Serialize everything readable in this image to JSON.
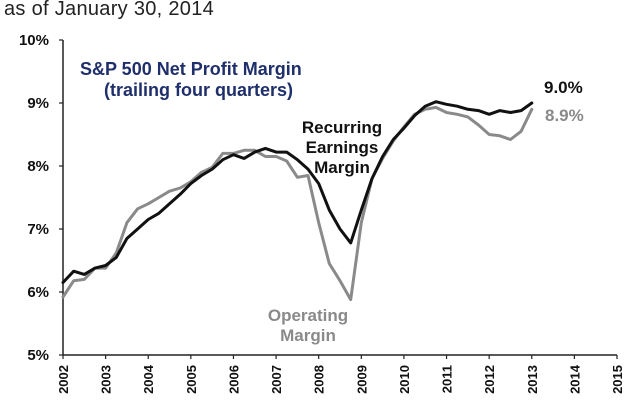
{
  "header": {
    "subtitle": "as of January 30, 2014"
  },
  "chart_data": {
    "type": "line",
    "title": "S&P 500 Net Profit  Margin",
    "subtitle": "(trailing four quarters)",
    "xlabel": "",
    "ylabel": "",
    "xlim": [
      2002,
      2015
    ],
    "ylim": [
      5,
      10
    ],
    "x_ticks": [
      "2002",
      "2003",
      "2004",
      "2005",
      "2006",
      "2007",
      "2008",
      "2009",
      "2010",
      "2011",
      "2012",
      "2013",
      "2014",
      "2015"
    ],
    "y_ticks": [
      "5%",
      "6%",
      "7%",
      "8%",
      "9%",
      "10%"
    ],
    "grid": false,
    "series": [
      {
        "name": "Recurring Earnings Margin",
        "end_label": "9.0%",
        "color": "#111111",
        "x": [
          2002.0,
          2002.25,
          2002.5,
          2002.75,
          2003.0,
          2003.25,
          2003.5,
          2003.75,
          2004.0,
          2004.25,
          2004.5,
          2004.75,
          2005.0,
          2005.25,
          2005.5,
          2005.75,
          2006.0,
          2006.25,
          2006.5,
          2006.75,
          2007.0,
          2007.25,
          2007.5,
          2007.75,
          2008.0,
          2008.25,
          2008.5,
          2008.75,
          2009.0,
          2009.25,
          2009.5,
          2009.75,
          2010.0,
          2010.25,
          2010.5,
          2010.75,
          2011.0,
          2011.25,
          2011.5,
          2011.75,
          2012.0,
          2012.25,
          2012.5,
          2012.75,
          2013.0
        ],
        "y": [
          6.15,
          6.33,
          6.28,
          6.38,
          6.42,
          6.55,
          6.85,
          7.0,
          7.15,
          7.25,
          7.4,
          7.55,
          7.72,
          7.85,
          7.95,
          8.1,
          8.18,
          8.12,
          8.22,
          8.28,
          8.22,
          8.22,
          8.1,
          7.95,
          7.72,
          7.3,
          7.0,
          6.78,
          7.3,
          7.8,
          8.15,
          8.42,
          8.6,
          8.8,
          8.95,
          9.02,
          8.98,
          8.95,
          8.9,
          8.88,
          8.82,
          8.88,
          8.85,
          8.88,
          9.0
        ]
      },
      {
        "name": "Operating Margin",
        "end_label": "8.9%",
        "color": "#8a8a8a",
        "x": [
          2002.0,
          2002.25,
          2002.5,
          2002.75,
          2003.0,
          2003.25,
          2003.5,
          2003.75,
          2004.0,
          2004.25,
          2004.5,
          2004.75,
          2005.0,
          2005.25,
          2005.5,
          2005.75,
          2006.0,
          2006.25,
          2006.5,
          2006.75,
          2007.0,
          2007.25,
          2007.5,
          2007.75,
          2008.0,
          2008.25,
          2008.5,
          2008.75,
          2009.0,
          2009.25,
          2009.5,
          2009.75,
          2010.0,
          2010.25,
          2010.5,
          2010.75,
          2011.0,
          2011.25,
          2011.5,
          2011.75,
          2012.0,
          2012.25,
          2012.5,
          2012.75,
          2013.0
        ],
        "y": [
          5.92,
          6.18,
          6.2,
          6.38,
          6.38,
          6.62,
          7.1,
          7.32,
          7.4,
          7.5,
          7.6,
          7.65,
          7.75,
          7.9,
          7.98,
          8.2,
          8.2,
          8.25,
          8.25,
          8.15,
          8.15,
          8.08,
          7.82,
          7.85,
          7.1,
          6.45,
          6.18,
          5.88,
          7.1,
          7.8,
          8.12,
          8.4,
          8.62,
          8.82,
          8.9,
          8.93,
          8.85,
          8.82,
          8.78,
          8.65,
          8.5,
          8.48,
          8.42,
          8.55,
          8.9
        ]
      }
    ],
    "annotations": [
      {
        "text_lines": [
          "Recurring",
          "Earnings",
          "Margin"
        ],
        "series": "Recurring Earnings Margin"
      },
      {
        "text_lines": [
          "Operating",
          "Margin"
        ],
        "series": "Operating Margin"
      }
    ]
  }
}
